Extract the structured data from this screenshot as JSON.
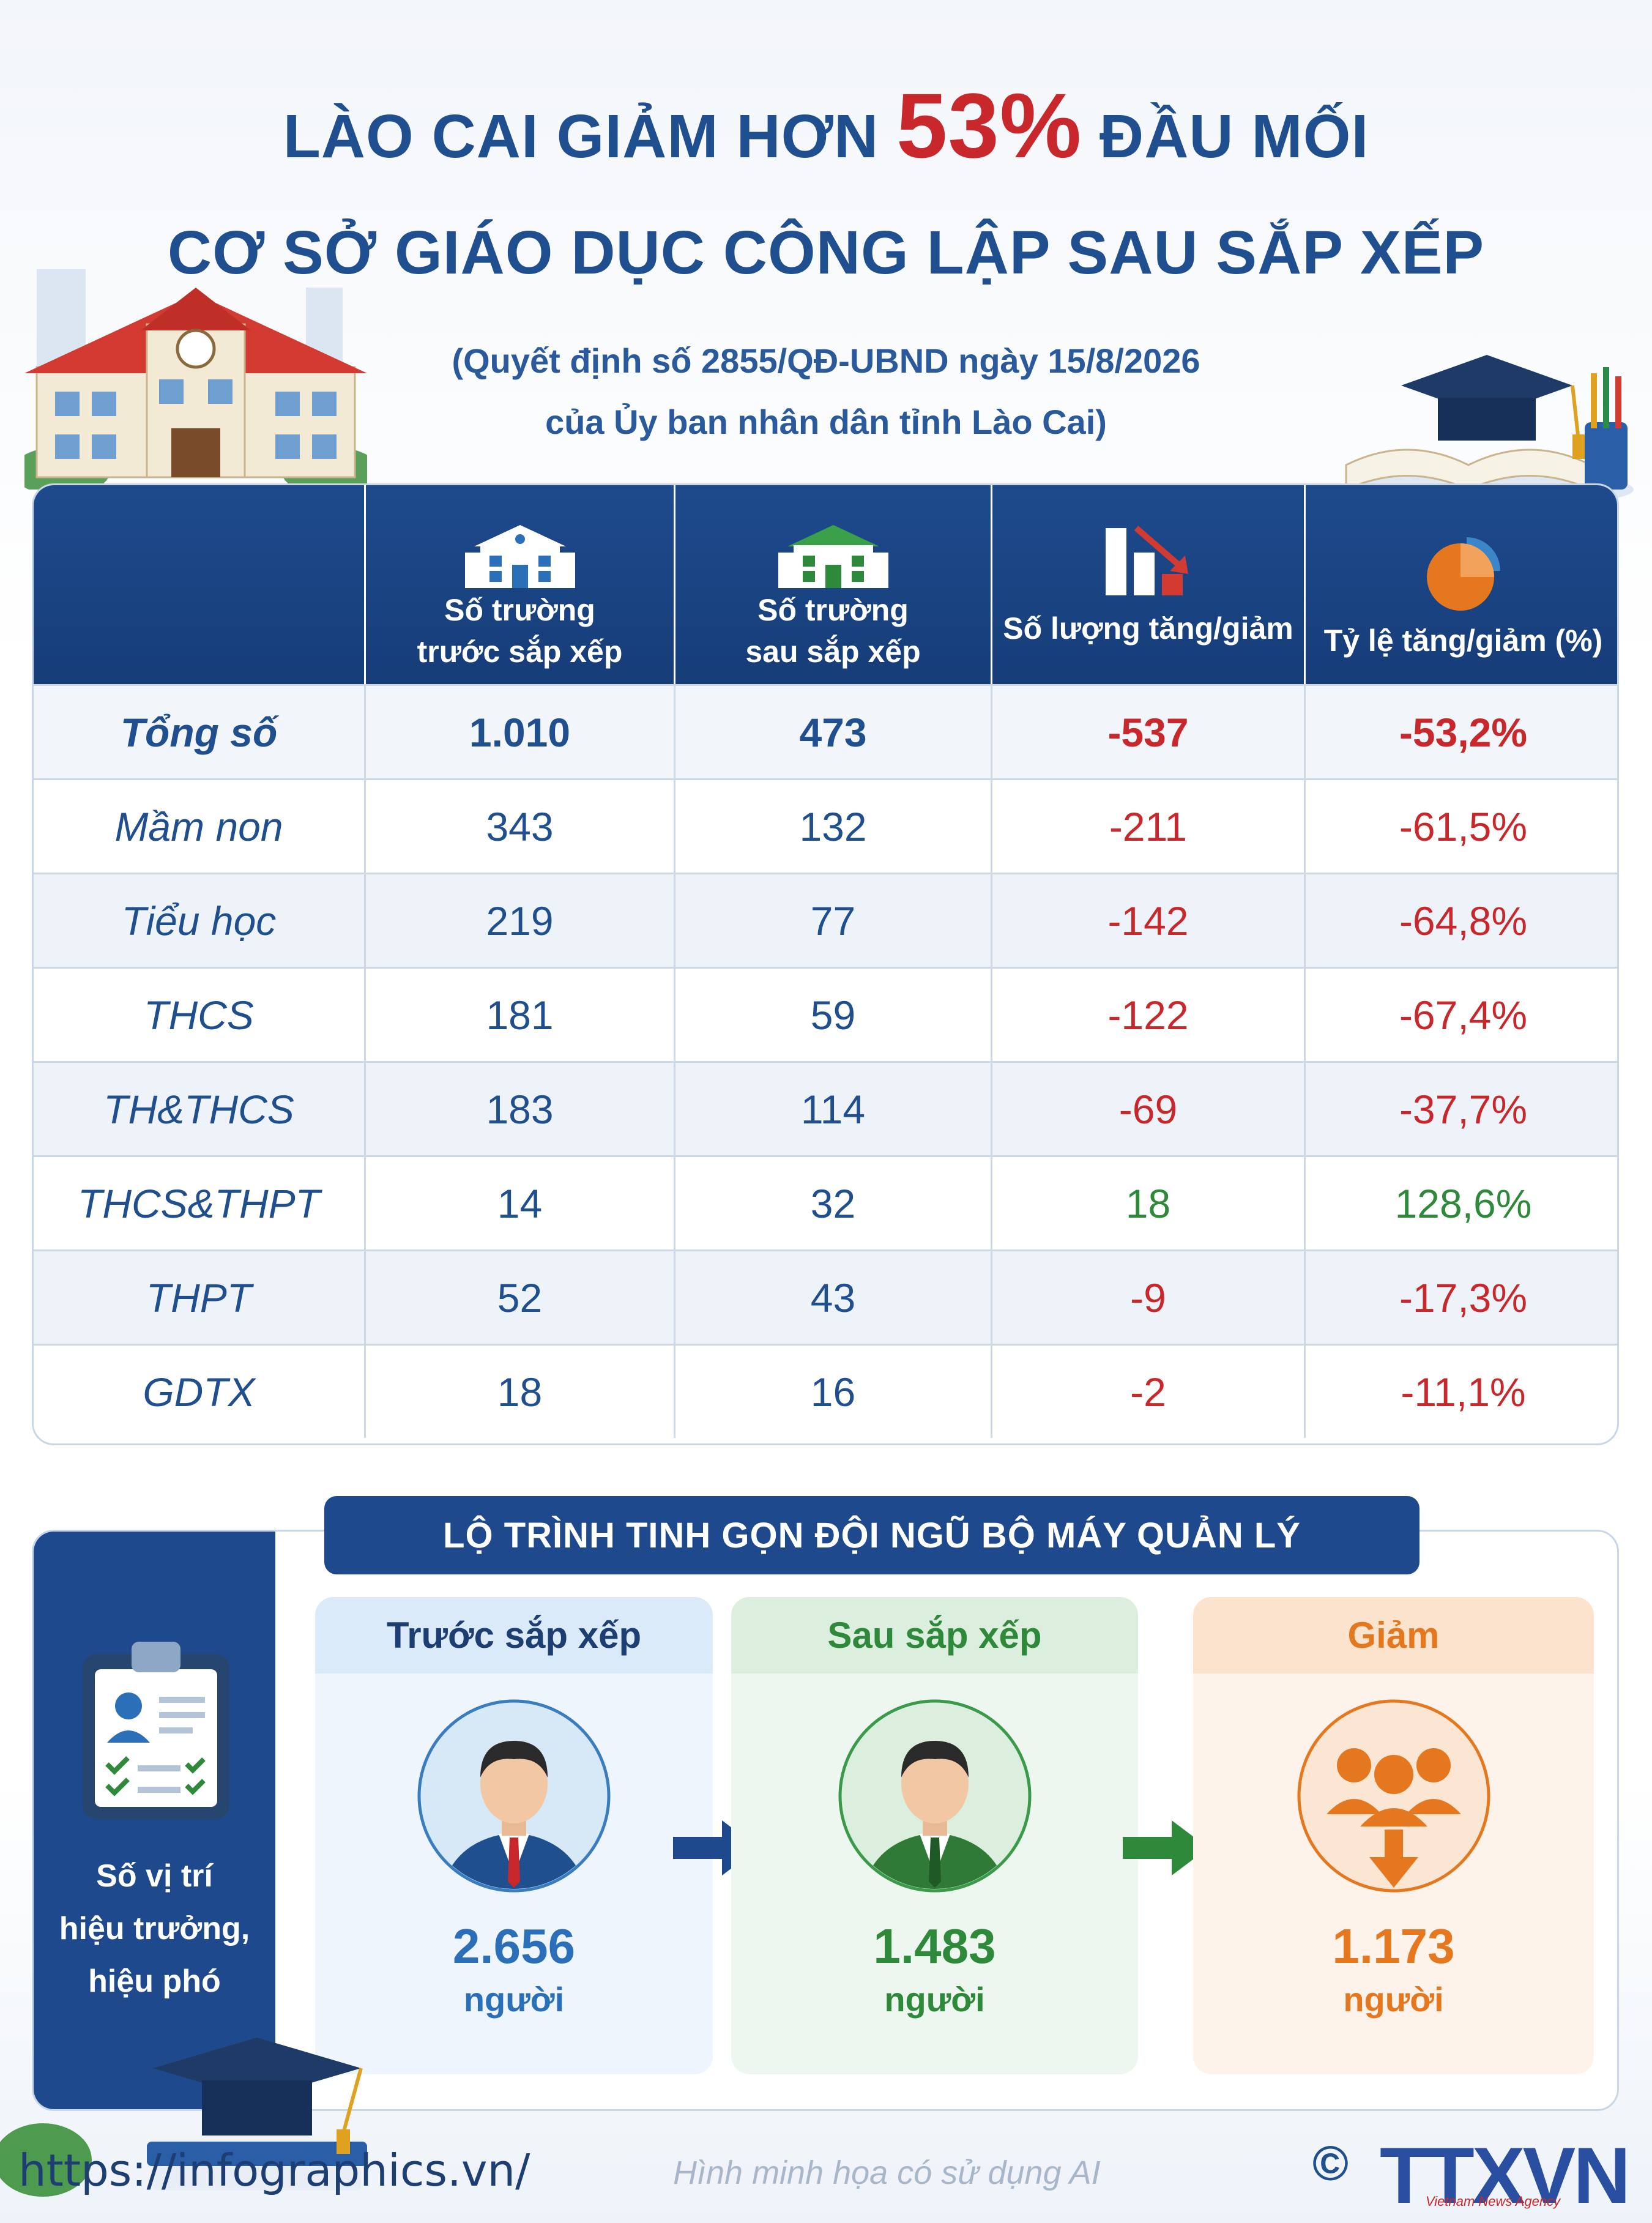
{
  "title": {
    "line1_prefix": "LÀO CAI GIẢM HƠN ",
    "line1_highlight": "53%",
    "line1_suffix": " ĐẦU MỐI",
    "line2": "CƠ SỞ GIÁO DỤC CÔNG LẬP SAU SẮP XẾP"
  },
  "subtitle": {
    "line1": "(Quyết định số 2855/QĐ-UBND ngày 15/8/2026",
    "line2": "của Ủy ban nhân dân tỉnh Lào Cai)"
  },
  "table": {
    "headers": [
      {
        "line1": "Số trường",
        "line2": "trước sắp xếp",
        "icon": "school-icon"
      },
      {
        "line1": "Số trường",
        "line2": "sau sắp xếp",
        "icon": "school-icon"
      },
      {
        "line1": "Số lượng tăng/giảm",
        "line2": "",
        "icon": "bar-chart-down-icon"
      },
      {
        "line1": "Tỷ lệ tăng/giảm (%)",
        "line2": "",
        "icon": "pie-chart-icon"
      }
    ],
    "rows": [
      {
        "name": "Tổng số",
        "before": "1.010",
        "after": "473",
        "change": "-537",
        "rate": "-53,2%",
        "sign": "neg",
        "total": true
      },
      {
        "name": "Mầm non",
        "before": "343",
        "after": "132",
        "change": "-211",
        "rate": "-61,5%",
        "sign": "neg"
      },
      {
        "name": "Tiểu học",
        "before": "219",
        "after": "77",
        "change": "-142",
        "rate": "-64,8%",
        "sign": "neg"
      },
      {
        "name": "THCS",
        "before": "181",
        "after": "59",
        "change": "-122",
        "rate": "-67,4%",
        "sign": "neg"
      },
      {
        "name": "TH&THCS",
        "before": "183",
        "after": "114",
        "change": "-69",
        "rate": "-37,7%",
        "sign": "neg"
      },
      {
        "name": "THCS&THPT",
        "before": "14",
        "after": "32",
        "change": "18",
        "rate": "128,6%",
        "sign": "pos"
      },
      {
        "name": "THPT",
        "before": "52",
        "after": "43",
        "change": "-9",
        "rate": "-17,3%",
        "sign": "neg"
      },
      {
        "name": "GDTX",
        "before": "18",
        "after": "16",
        "change": "-2",
        "rate": "-11,1%",
        "sign": "neg"
      }
    ]
  },
  "management": {
    "banner": "LỘ TRÌNH TINH GỌN ĐỘI NGŨ BỘ MÁY QUẢN LÝ",
    "side_label_lines": [
      "Số vị trí",
      "hiệu trưởng,",
      "hiệu phó"
    ],
    "columns": [
      {
        "head": "Trước sắp xếp",
        "value": "2.656",
        "unit": "người",
        "color": "#2a6fb8"
      },
      {
        "head": "Sau sắp xếp",
        "value": "1.483",
        "unit": "người",
        "color": "#2e8a3a"
      },
      {
        "head": "Giảm",
        "value": "1.173",
        "unit": "người",
        "color": "#e5771f"
      }
    ]
  },
  "footer": {
    "url": "https://infographics.vn/",
    "note": "Hình minh họa có sử dụng AI",
    "copyright": "©",
    "logo": "TTXVN",
    "logo_sub": "Vietnam News Agency"
  },
  "colors": {
    "primary": "#1e4a8d",
    "negative": "#c8282b",
    "positive": "#2e8a3a",
    "orange": "#e5771f"
  }
}
